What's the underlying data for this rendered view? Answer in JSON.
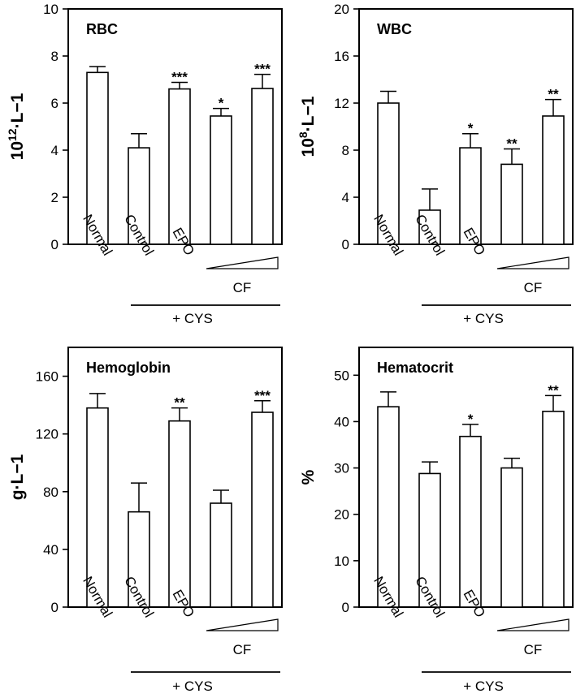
{
  "categories": [
    "Normal",
    "Control",
    "EPO",
    "CF",
    "CF"
  ],
  "group_label": "+ CYS",
  "cf_label": "CF",
  "chart_data": [
    {
      "type": "bar",
      "title": "RBC",
      "ylabel_base": "10",
      "ylabel_exp": "12",
      "ylabel_rest": "·L−1",
      "ylim": [
        0,
        10
      ],
      "yticks": [
        "0",
        "2",
        "4",
        "6",
        "8",
        "10"
      ],
      "categories": [
        "Normal",
        "Control",
        "EPO",
        "CF (low dose)",
        "CF (high dose)"
      ],
      "values": [
        7.3,
        4.1,
        6.6,
        5.45,
        6.62
      ],
      "errors": [
        0.25,
        0.6,
        0.28,
        0.32,
        0.6
      ],
      "significance": [
        "",
        "",
        "***",
        "*",
        "***"
      ]
    },
    {
      "type": "bar",
      "title": "WBC",
      "ylabel_base": "10",
      "ylabel_exp": "8",
      "ylabel_rest": "·L−1",
      "ylim": [
        0,
        20
      ],
      "yticks": [
        "0",
        "4",
        "8",
        "12",
        "16",
        "20"
      ],
      "categories": [
        "Normal",
        "Control",
        "EPO",
        "CF (low dose)",
        "CF (high dose)"
      ],
      "values": [
        12.0,
        2.9,
        8.2,
        6.8,
        10.9
      ],
      "errors": [
        1.0,
        1.8,
        1.2,
        1.3,
        1.4
      ],
      "significance": [
        "",
        "",
        "*",
        "**",
        "**"
      ]
    },
    {
      "type": "bar",
      "title": "Hemoglobin",
      "ylabel_base": "g·L−1",
      "ylabel_exp": "",
      "ylabel_rest": "",
      "ylim": [
        0,
        180
      ],
      "yticks": [
        "0",
        "40",
        "80",
        "120",
        "160"
      ],
      "categories": [
        "Normal",
        "Control",
        "EPO",
        "CF (low dose)",
        "CF (high dose)"
      ],
      "values": [
        138,
        66,
        129,
        72,
        135
      ],
      "errors": [
        10,
        20,
        9,
        9,
        8
      ],
      "significance": [
        "",
        "",
        "**",
        "",
        "***"
      ]
    },
    {
      "type": "bar",
      "title": "Hematocrit",
      "ylabel_base": "%",
      "ylabel_exp": "",
      "ylabel_rest": "",
      "ylim": [
        0,
        56
      ],
      "yticks": [
        "0",
        "10",
        "20",
        "30",
        "40",
        "50"
      ],
      "categories": [
        "Normal",
        "Control",
        "EPO",
        "CF (low dose)",
        "CF (high dose)"
      ],
      "values": [
        43.2,
        28.8,
        36.8,
        30.0,
        42.2
      ],
      "errors": [
        3.2,
        2.5,
        2.6,
        2.1,
        3.4
      ],
      "significance": [
        "",
        "",
        "*",
        "",
        "**"
      ]
    }
  ]
}
